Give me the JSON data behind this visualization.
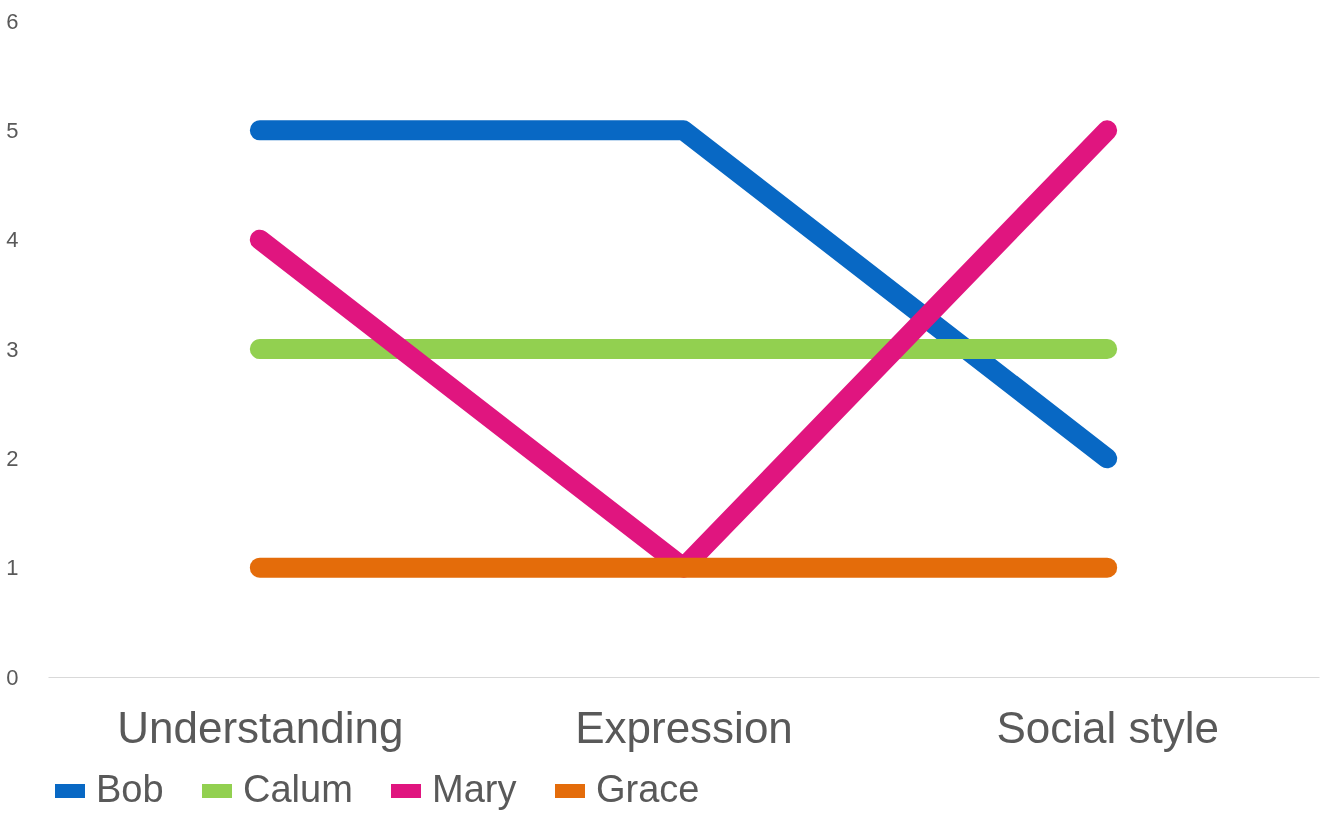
{
  "chart_data": {
    "type": "line",
    "categories": [
      "Understanding",
      "Expression",
      "Social style"
    ],
    "series": [
      {
        "name": "Bob",
        "color": "#0868c4",
        "values": [
          5,
          5,
          2
        ]
      },
      {
        "name": "Calum",
        "color": "#92d050",
        "values": [
          3,
          3,
          3
        ]
      },
      {
        "name": "Mary",
        "color": "#e0157f",
        "values": [
          4,
          1,
          5
        ]
      },
      {
        "name": "Grace",
        "color": "#e46c0a",
        "values": [
          1,
          1,
          1
        ]
      }
    ],
    "ylim": [
      0,
      6
    ],
    "yticks": [
      0,
      1,
      2,
      3,
      4,
      5,
      6
    ],
    "grid": false,
    "legend": "bottom",
    "marker": "none",
    "line_style": "solid"
  }
}
